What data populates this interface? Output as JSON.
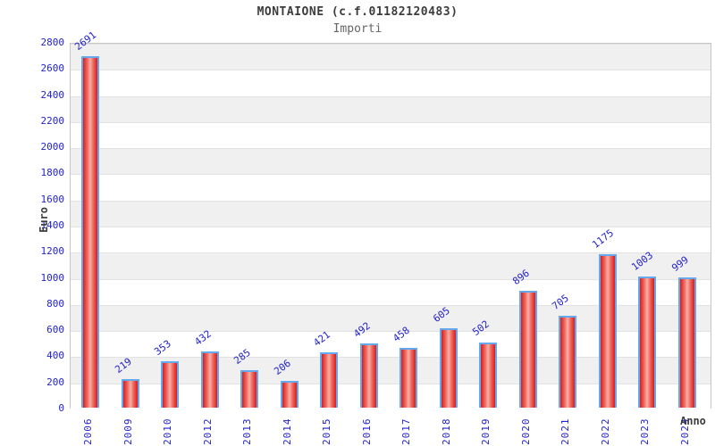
{
  "header": {
    "title": "MONTAIONE (c.f.01182120483)",
    "subtitle": "Importi"
  },
  "axes": {
    "y_title": "Euro",
    "x_title": "Anno"
  },
  "chart_data": {
    "type": "bar",
    "title": "MONTAIONE (c.f.01182120483)",
    "subtitle": "Importi",
    "xlabel": "Anno",
    "ylabel": "Euro",
    "categories": [
      "2006",
      "2009",
      "2010",
      "2012",
      "2013",
      "2014",
      "2015",
      "2016",
      "2017",
      "2018",
      "2019",
      "2020",
      "2021",
      "2022",
      "2023",
      "2024"
    ],
    "values": [
      2691,
      219,
      353,
      432,
      285,
      206,
      421,
      492,
      458,
      605,
      502,
      896,
      705,
      1175,
      1003,
      999
    ],
    "ylim": [
      0,
      2800
    ],
    "ytick_step": 200,
    "yticks": [
      0,
      200,
      400,
      600,
      800,
      1000,
      1200,
      1400,
      1600,
      1800,
      2000,
      2200,
      2400,
      2600,
      2800
    ],
    "legend": "none",
    "grid": "alternating horizontal bands every 200, gray topmost band",
    "colors": {
      "bar_fill_edge": "#d91c1c",
      "bar_fill_center": "#f9b0a8",
      "bar_border": "#64a8ee",
      "data_label_text": "#2222cc",
      "tick_label_text": "#2222cc",
      "band_gray": "#f0f0f0",
      "band_white": "#ffffff",
      "title_text": "#3c3c3c",
      "subtitle_text": "#666666"
    }
  }
}
